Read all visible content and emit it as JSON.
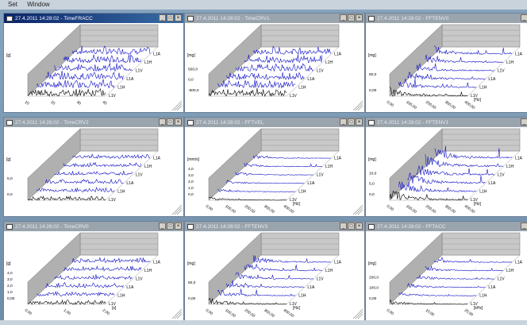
{
  "menu": {
    "items": [
      "Set",
      "Window"
    ]
  },
  "colors": {
    "accent": "#1010c8",
    "trace_front": "#000000"
  },
  "windows": [
    {
      "id": "w0",
      "title": "27.4.2011 14:28:02 - TimeFRACC",
      "active": true,
      "unit": "[g]",
      "yticks": [],
      "xticks": [
        "10",
        "20",
        "30",
        "40"
      ],
      "xunit": "",
      "legend": [
        "L1V",
        "L1H",
        "L1A",
        "L1V",
        "L1H",
        "L1A"
      ],
      "type": "time",
      "density": 0.95
    },
    {
      "id": "w1",
      "title": "27.4.2011 14:28:02 - TimeCRV1",
      "active": false,
      "unit": "[mg]",
      "yticks": [
        "500,0",
        "0,0",
        "-500,0"
      ],
      "xticks": [],
      "xunit": "",
      "legend": [
        "L1V",
        "L1H",
        "L1A",
        "L1V",
        "L1H",
        "L1A"
      ],
      "type": "time",
      "density": 0.9
    },
    {
      "id": "w2",
      "title": "27.4.2011 14:28:02 - FFTENV0",
      "active": false,
      "unit": "[mg]",
      "yticks": [
        "50,0",
        "0,00"
      ],
      "xticks": [
        "0,00",
        "100,00",
        "200,00",
        "300,00",
        "400,00"
      ],
      "xunit": "[Hz]",
      "legend": [
        "L1V",
        "L1H",
        "L1A",
        "L1V",
        "L1H",
        "L1A"
      ],
      "type": "fft",
      "density": 0.6
    },
    {
      "id": "w3",
      "title": "27.4.2011 14:28:02 - TimeCRV2",
      "active": false,
      "unit": "[g]",
      "yticks": [
        "5,0",
        "0,0"
      ],
      "xticks": [],
      "xunit": "",
      "legend": [
        "L1V",
        "L1H",
        "L1A",
        "L1V",
        "L1H",
        "L1A"
      ],
      "type": "time",
      "density": 0.5
    },
    {
      "id": "w4",
      "title": "27.4.2011 14:28:02 - FFTVEL",
      "active": false,
      "unit": "[mm/s]",
      "yticks": [
        "4,0",
        "3,0",
        "2,0",
        "1,0",
        "0,0"
      ],
      "xticks": [
        "0,00",
        "100,00",
        "200,00",
        "300,00",
        "400,00"
      ],
      "xunit": "[Hz]",
      "legend": [
        "L1V",
        "L1H",
        "L1A",
        "L1V",
        "L1H",
        "L1A"
      ],
      "type": "fft",
      "density": 0.25
    },
    {
      "id": "w5",
      "title": "27.4.2011 14:28:02 - FFTENV1",
      "active": false,
      "unit": "[mg]",
      "yticks": [
        "10,0",
        "5,0",
        "0,0"
      ],
      "xticks": [
        "0,00",
        "100,00",
        "200,00",
        "300,00",
        "400,00"
      ],
      "xunit": "[Hz]",
      "legend": [
        "L1V",
        "L1H",
        "L1A",
        "L1V",
        "L1H",
        "L1A"
      ],
      "type": "fft",
      "density": 0.85
    },
    {
      "id": "w6",
      "title": "27.4.2011 14:28:02 - TimeCRV0",
      "active": false,
      "unit": "[g]",
      "yticks": [
        "4,0",
        "3,0",
        "2,0",
        "1,0",
        "0,00"
      ],
      "xticks": [
        "0,00",
        "1,00",
        "2,00"
      ],
      "xunit": "[s]",
      "legend": [
        "L1V",
        "L1H",
        "L1A",
        "L1V",
        "L1H",
        "L1A"
      ],
      "type": "time",
      "density": 0.55
    },
    {
      "id": "w7",
      "title": "27.4.2011 14:28:02 - FFTENV3",
      "active": false,
      "unit": "[mg]",
      "yticks": [
        "50,0",
        "0,00"
      ],
      "xticks": [
        "0,00",
        "100,00",
        "200,00",
        "300,00",
        "400,00"
      ],
      "xunit": "[Hz]",
      "legend": [
        "L1V",
        "L1H",
        "L1A",
        "L1V",
        "L1H",
        "L1A"
      ],
      "type": "fft",
      "density": 0.5
    },
    {
      "id": "w8",
      "title": "27.4.2011 14:28:02 - FFTACC",
      "active": false,
      "unit": "[mg]",
      "yticks": [
        "200,0",
        "100,0",
        "0,00"
      ],
      "xticks": [
        "0,00",
        "10,00",
        "20,00"
      ],
      "xunit": "[kHz]",
      "legend": [
        "L1V",
        "L1H",
        "L1A",
        "L1V",
        "L1H",
        "L1A"
      ],
      "type": "fft",
      "density": 0.3
    }
  ]
}
